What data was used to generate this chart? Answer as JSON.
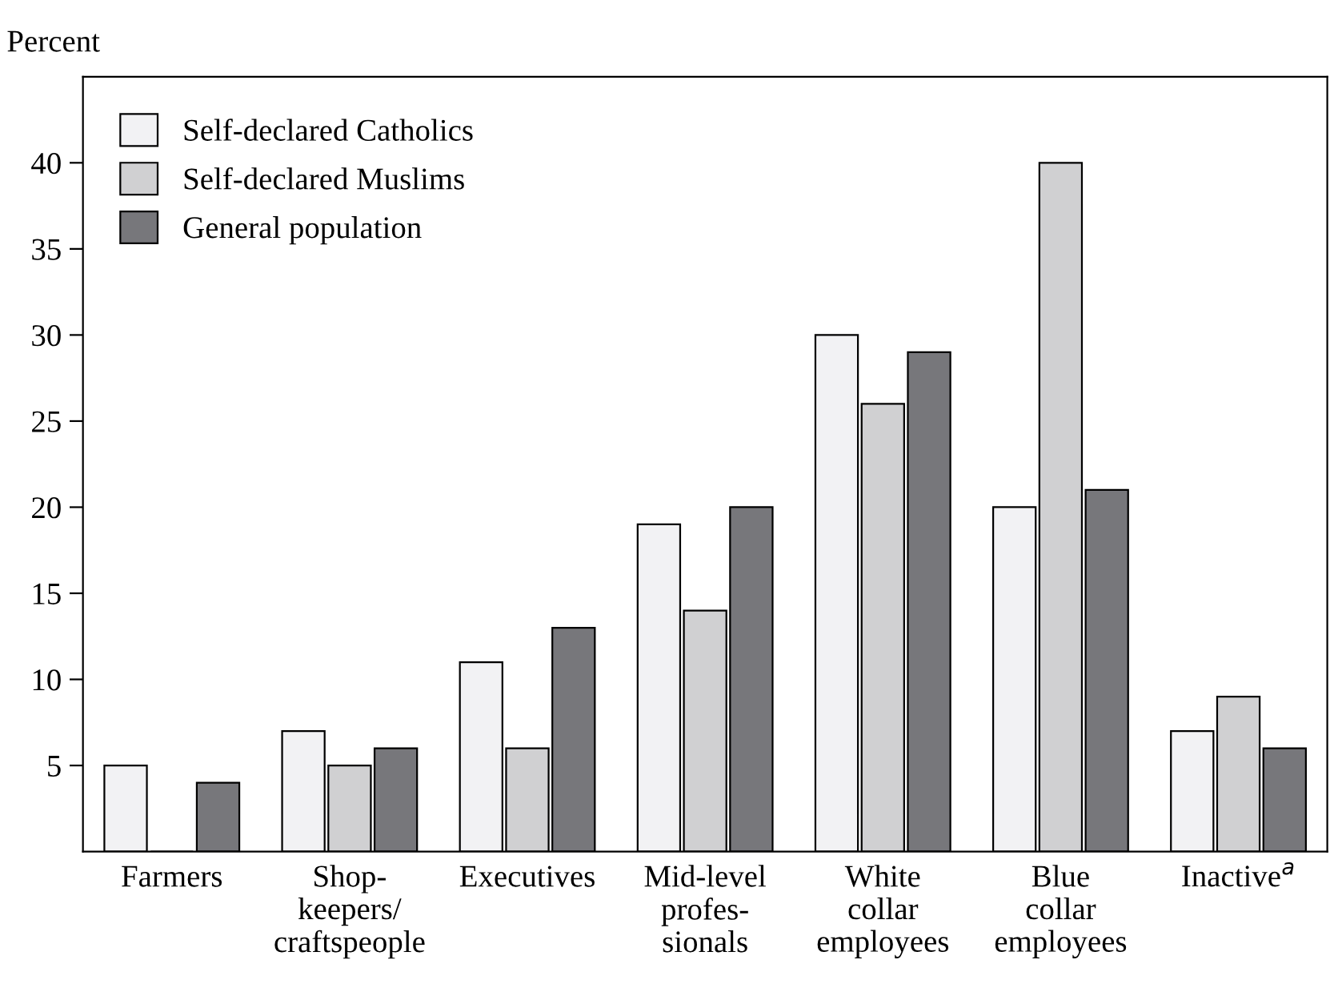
{
  "chart_data": {
    "type": "bar",
    "ylabel": "Percent",
    "categories": [
      "Farmers",
      "Shop-\nkeepers/\ncraftspeople",
      "Executives",
      "Mid-level\nprofes-\nsionals",
      "White\ncollar\nemployees",
      "Blue\ncollar\nemployees",
      "Inactive$^{a}$"
    ],
    "series": [
      {
        "name": "Self-declared Catholics",
        "color": "#f2f2f4",
        "values": [
          5,
          7,
          11,
          19,
          30,
          20,
          7
        ]
      },
      {
        "name": "Self-declared Muslims",
        "color": "#d0d0d2",
        "values": [
          0,
          5,
          6,
          14,
          26,
          40,
          9
        ]
      },
      {
        "name": "General population",
        "color": "#77777b",
        "values": [
          4,
          6,
          13,
          20,
          29,
          21,
          6
        ]
      }
    ],
    "ylim": [
      0,
      45
    ],
    "yticks": [
      5,
      10,
      15,
      20,
      25,
      30,
      35,
      40
    ],
    "grid": false,
    "legend": "top left"
  }
}
